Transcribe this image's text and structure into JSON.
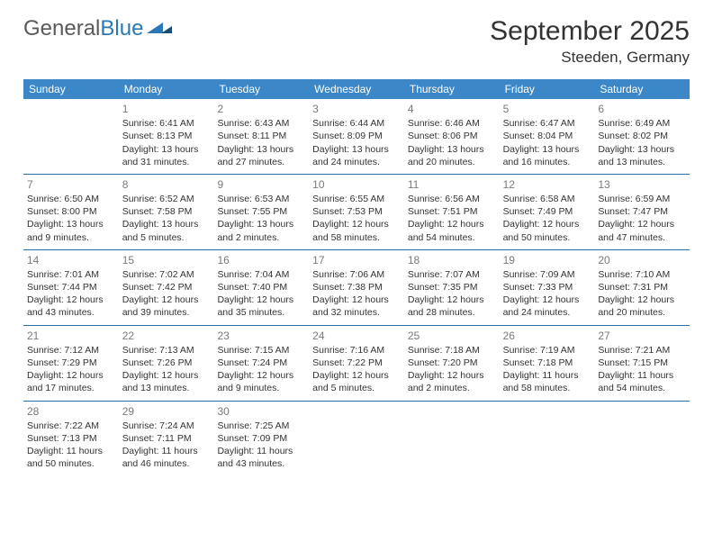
{
  "brand": {
    "part1": "General",
    "part2": "Blue"
  },
  "title": "September 2025",
  "location": "Steeden, Germany",
  "colors": {
    "header_bg": "#3b87c8",
    "header_text": "#ffffff",
    "rule": "#2f6fa8",
    "daynum": "#7a7a7a",
    "body_text": "#333333",
    "logo_gray": "#5a5a5a",
    "logo_blue": "#2a78b8",
    "background": "#ffffff"
  },
  "typography": {
    "title_fontsize": 30,
    "location_fontsize": 17,
    "dayhead_fontsize": 12,
    "daynum_fontsize": 12,
    "cell_fontsize": 10.5
  },
  "day_names": [
    "Sunday",
    "Monday",
    "Tuesday",
    "Wednesday",
    "Thursday",
    "Friday",
    "Saturday"
  ],
  "weeks": [
    [
      null,
      {
        "n": "1",
        "sunrise": "Sunrise: 6:41 AM",
        "sunset": "Sunset: 8:13 PM",
        "dl1": "Daylight: 13 hours",
        "dl2": "and 31 minutes."
      },
      {
        "n": "2",
        "sunrise": "Sunrise: 6:43 AM",
        "sunset": "Sunset: 8:11 PM",
        "dl1": "Daylight: 13 hours",
        "dl2": "and 27 minutes."
      },
      {
        "n": "3",
        "sunrise": "Sunrise: 6:44 AM",
        "sunset": "Sunset: 8:09 PM",
        "dl1": "Daylight: 13 hours",
        "dl2": "and 24 minutes."
      },
      {
        "n": "4",
        "sunrise": "Sunrise: 6:46 AM",
        "sunset": "Sunset: 8:06 PM",
        "dl1": "Daylight: 13 hours",
        "dl2": "and 20 minutes."
      },
      {
        "n": "5",
        "sunrise": "Sunrise: 6:47 AM",
        "sunset": "Sunset: 8:04 PM",
        "dl1": "Daylight: 13 hours",
        "dl2": "and 16 minutes."
      },
      {
        "n": "6",
        "sunrise": "Sunrise: 6:49 AM",
        "sunset": "Sunset: 8:02 PM",
        "dl1": "Daylight: 13 hours",
        "dl2": "and 13 minutes."
      }
    ],
    [
      {
        "n": "7",
        "sunrise": "Sunrise: 6:50 AM",
        "sunset": "Sunset: 8:00 PM",
        "dl1": "Daylight: 13 hours",
        "dl2": "and 9 minutes."
      },
      {
        "n": "8",
        "sunrise": "Sunrise: 6:52 AM",
        "sunset": "Sunset: 7:58 PM",
        "dl1": "Daylight: 13 hours",
        "dl2": "and 5 minutes."
      },
      {
        "n": "9",
        "sunrise": "Sunrise: 6:53 AM",
        "sunset": "Sunset: 7:55 PM",
        "dl1": "Daylight: 13 hours",
        "dl2": "and 2 minutes."
      },
      {
        "n": "10",
        "sunrise": "Sunrise: 6:55 AM",
        "sunset": "Sunset: 7:53 PM",
        "dl1": "Daylight: 12 hours",
        "dl2": "and 58 minutes."
      },
      {
        "n": "11",
        "sunrise": "Sunrise: 6:56 AM",
        "sunset": "Sunset: 7:51 PM",
        "dl1": "Daylight: 12 hours",
        "dl2": "and 54 minutes."
      },
      {
        "n": "12",
        "sunrise": "Sunrise: 6:58 AM",
        "sunset": "Sunset: 7:49 PM",
        "dl1": "Daylight: 12 hours",
        "dl2": "and 50 minutes."
      },
      {
        "n": "13",
        "sunrise": "Sunrise: 6:59 AM",
        "sunset": "Sunset: 7:47 PM",
        "dl1": "Daylight: 12 hours",
        "dl2": "and 47 minutes."
      }
    ],
    [
      {
        "n": "14",
        "sunrise": "Sunrise: 7:01 AM",
        "sunset": "Sunset: 7:44 PM",
        "dl1": "Daylight: 12 hours",
        "dl2": "and 43 minutes."
      },
      {
        "n": "15",
        "sunrise": "Sunrise: 7:02 AM",
        "sunset": "Sunset: 7:42 PM",
        "dl1": "Daylight: 12 hours",
        "dl2": "and 39 minutes."
      },
      {
        "n": "16",
        "sunrise": "Sunrise: 7:04 AM",
        "sunset": "Sunset: 7:40 PM",
        "dl1": "Daylight: 12 hours",
        "dl2": "and 35 minutes."
      },
      {
        "n": "17",
        "sunrise": "Sunrise: 7:06 AM",
        "sunset": "Sunset: 7:38 PM",
        "dl1": "Daylight: 12 hours",
        "dl2": "and 32 minutes."
      },
      {
        "n": "18",
        "sunrise": "Sunrise: 7:07 AM",
        "sunset": "Sunset: 7:35 PM",
        "dl1": "Daylight: 12 hours",
        "dl2": "and 28 minutes."
      },
      {
        "n": "19",
        "sunrise": "Sunrise: 7:09 AM",
        "sunset": "Sunset: 7:33 PM",
        "dl1": "Daylight: 12 hours",
        "dl2": "and 24 minutes."
      },
      {
        "n": "20",
        "sunrise": "Sunrise: 7:10 AM",
        "sunset": "Sunset: 7:31 PM",
        "dl1": "Daylight: 12 hours",
        "dl2": "and 20 minutes."
      }
    ],
    [
      {
        "n": "21",
        "sunrise": "Sunrise: 7:12 AM",
        "sunset": "Sunset: 7:29 PM",
        "dl1": "Daylight: 12 hours",
        "dl2": "and 17 minutes."
      },
      {
        "n": "22",
        "sunrise": "Sunrise: 7:13 AM",
        "sunset": "Sunset: 7:26 PM",
        "dl1": "Daylight: 12 hours",
        "dl2": "and 13 minutes."
      },
      {
        "n": "23",
        "sunrise": "Sunrise: 7:15 AM",
        "sunset": "Sunset: 7:24 PM",
        "dl1": "Daylight: 12 hours",
        "dl2": "and 9 minutes."
      },
      {
        "n": "24",
        "sunrise": "Sunrise: 7:16 AM",
        "sunset": "Sunset: 7:22 PM",
        "dl1": "Daylight: 12 hours",
        "dl2": "and 5 minutes."
      },
      {
        "n": "25",
        "sunrise": "Sunrise: 7:18 AM",
        "sunset": "Sunset: 7:20 PM",
        "dl1": "Daylight: 12 hours",
        "dl2": "and 2 minutes."
      },
      {
        "n": "26",
        "sunrise": "Sunrise: 7:19 AM",
        "sunset": "Sunset: 7:18 PM",
        "dl1": "Daylight: 11 hours",
        "dl2": "and 58 minutes."
      },
      {
        "n": "27",
        "sunrise": "Sunrise: 7:21 AM",
        "sunset": "Sunset: 7:15 PM",
        "dl1": "Daylight: 11 hours",
        "dl2": "and 54 minutes."
      }
    ],
    [
      {
        "n": "28",
        "sunrise": "Sunrise: 7:22 AM",
        "sunset": "Sunset: 7:13 PM",
        "dl1": "Daylight: 11 hours",
        "dl2": "and 50 minutes."
      },
      {
        "n": "29",
        "sunrise": "Sunrise: 7:24 AM",
        "sunset": "Sunset: 7:11 PM",
        "dl1": "Daylight: 11 hours",
        "dl2": "and 46 minutes."
      },
      {
        "n": "30",
        "sunrise": "Sunrise: 7:25 AM",
        "sunset": "Sunset: 7:09 PM",
        "dl1": "Daylight: 11 hours",
        "dl2": "and 43 minutes."
      },
      null,
      null,
      null,
      null
    ]
  ]
}
